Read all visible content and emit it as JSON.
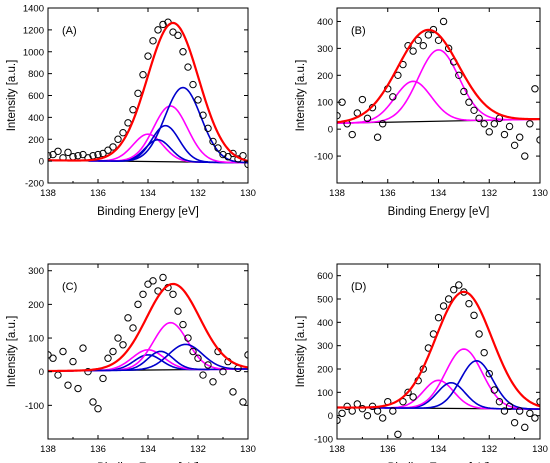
{
  "chart_data": [
    {
      "type": "line",
      "panel_label": "(A)",
      "xlabel": "Binding Energy [eV]",
      "ylabel": "Intensity [a.u.]",
      "xlim": [
        138,
        130
      ],
      "ylim": [
        -200,
        1400
      ],
      "x_ticks": [
        138,
        136,
        134,
        132,
        130
      ],
      "y_ticks": [
        -200,
        0,
        200,
        400,
        600,
        800,
        1000,
        1200,
        1400
      ],
      "grid": false,
      "baseline": [
        [
          138,
          8
        ],
        [
          130,
          -15
        ]
      ],
      "components": [
        {
          "color": "#ff00ff",
          "center": 134.0,
          "height": 250,
          "fwhm": 1.4
        },
        {
          "color": "#0000cc",
          "center": 133.6,
          "height": 200,
          "fwhm": 1.2
        },
        {
          "color": "#0000cc",
          "center": 133.3,
          "height": 330,
          "fwhm": 1.3
        },
        {
          "color": "#ff00ff",
          "center": 133.1,
          "height": 510,
          "fwhm": 1.6
        },
        {
          "color": "#0000cc",
          "center": 132.6,
          "height": 680,
          "fwhm": 1.7
        }
      ],
      "envelope": {
        "color": "#ff0000",
        "center": 133.0,
        "height": 1270,
        "fwhm": 2.4
      },
      "points": {
        "x": [
          138.0,
          137.8,
          137.6,
          137.4,
          137.2,
          137.0,
          136.8,
          136.6,
          136.4,
          136.2,
          136.0,
          135.8,
          135.6,
          135.4,
          135.2,
          135.0,
          134.8,
          134.6,
          134.4,
          134.2,
          134.0,
          133.8,
          133.6,
          133.4,
          133.2,
          133.0,
          132.8,
          132.6,
          132.4,
          132.2,
          132.0,
          131.8,
          131.6,
          131.4,
          131.2,
          131.0,
          130.8,
          130.6,
          130.4,
          130.2,
          130.0
        ],
        "y": [
          50,
          60,
          90,
          30,
          80,
          40,
          50,
          60,
          30,
          50,
          60,
          70,
          100,
          130,
          200,
          260,
          350,
          470,
          620,
          790,
          960,
          1100,
          1200,
          1250,
          1270,
          1180,
          1150,
          1000,
          860,
          700,
          560,
          420,
          300,
          180,
          120,
          60,
          40,
          70,
          20,
          50,
          -30
        ]
      }
    },
    {
      "type": "line",
      "panel_label": "(B)",
      "xlabel": "Binding Energy [eV]",
      "ylabel": "Intensity [a.u.]",
      "xlim": [
        138,
        130
      ],
      "ylim": [
        -200,
        450
      ],
      "x_ticks": [
        138,
        136,
        134,
        132,
        130
      ],
      "y_ticks": [
        -100,
        0,
        100,
        200,
        300,
        400
      ],
      "grid": false,
      "baseline": [
        [
          138,
          22
        ],
        [
          130,
          37
        ]
      ],
      "components": [
        {
          "color": "#ff00ff",
          "center": 135.0,
          "height": 150,
          "fwhm": 1.7
        },
        {
          "color": "#ff00ff",
          "center": 134.0,
          "height": 265,
          "fwhm": 1.9
        }
      ],
      "envelope": {
        "color": "#ff0000",
        "center": 134.4,
        "height": 340,
        "fwhm": 2.8
      },
      "points": {
        "x": [
          138.0,
          137.8,
          137.6,
          137.4,
          137.2,
          137.0,
          136.8,
          136.6,
          136.4,
          136.2,
          136.0,
          135.8,
          135.6,
          135.4,
          135.2,
          135.0,
          134.8,
          134.6,
          134.4,
          134.2,
          134.0,
          133.8,
          133.6,
          133.4,
          133.2,
          133.0,
          132.8,
          132.6,
          132.4,
          132.2,
          132.0,
          131.8,
          131.6,
          131.4,
          131.2,
          131.0,
          130.8,
          130.6,
          130.4,
          130.2,
          130.0
        ],
        "y": [
          50,
          100,
          20,
          -20,
          60,
          110,
          40,
          80,
          -30,
          20,
          150,
          120,
          200,
          240,
          310,
          290,
          330,
          310,
          350,
          370,
          330,
          400,
          300,
          250,
          200,
          140,
          100,
          70,
          40,
          20,
          -10,
          20,
          40,
          -20,
          10,
          -60,
          -30,
          -100,
          20,
          150,
          -40
        ]
      }
    },
    {
      "type": "line",
      "panel_label": "(C)",
      "xlabel": "Binding Energy [eV]",
      "ylabel": "Intensity [a.u.]",
      "xlim": [
        138,
        130
      ],
      "ylim": [
        -200,
        320
      ],
      "x_ticks": [
        138,
        136,
        134,
        132,
        130
      ],
      "y_ticks": [
        -100,
        0,
        100,
        200,
        300
      ],
      "grid": false,
      "baseline": [
        [
          138,
          2
        ],
        [
          130,
          8
        ]
      ],
      "components": [
        {
          "color": "#0000cc",
          "center": 134.0,
          "height": 45,
          "fwhm": 1.3
        },
        {
          "color": "#ff00ff",
          "center": 134.0,
          "height": 60,
          "fwhm": 1.5
        },
        {
          "color": "#0000cc",
          "center": 133.5,
          "height": 55,
          "fwhm": 1.2
        },
        {
          "color": "#ff00ff",
          "center": 133.1,
          "height": 140,
          "fwhm": 1.6
        },
        {
          "color": "#0000cc",
          "center": 132.5,
          "height": 75,
          "fwhm": 1.6
        }
      ],
      "envelope": {
        "color": "#ff0000",
        "center": 133.0,
        "height": 255,
        "fwhm": 2.5
      },
      "points": {
        "x": [
          138.0,
          137.8,
          137.6,
          137.4,
          137.2,
          137.0,
          136.8,
          136.6,
          136.4,
          136.2,
          136.0,
          135.8,
          135.6,
          135.4,
          135.2,
          135.0,
          134.8,
          134.6,
          134.4,
          134.2,
          134.0,
          133.8,
          133.6,
          133.4,
          133.2,
          133.0,
          132.8,
          132.6,
          132.4,
          132.2,
          132.0,
          131.8,
          131.6,
          131.4,
          131.2,
          131.0,
          130.8,
          130.6,
          130.4,
          130.2,
          130.0
        ],
        "y": [
          50,
          40,
          -10,
          60,
          -40,
          30,
          -50,
          70,
          0,
          -90,
          -110,
          -20,
          40,
          60,
          100,
          80,
          160,
          130,
          200,
          230,
          260,
          270,
          240,
          280,
          250,
          230,
          180,
          140,
          100,
          60,
          40,
          -10,
          20,
          -30,
          60,
          0,
          30,
          -60,
          10,
          -90,
          50
        ]
      }
    },
    {
      "type": "line",
      "panel_label": "(D)",
      "xlabel": "Binding Energy [eV]",
      "ylabel": "Intensity [a.u.]",
      "xlim": [
        138,
        130
      ],
      "ylim": [
        -100,
        650
      ],
      "x_ticks": [
        138,
        136,
        134,
        132,
        130
      ],
      "y_ticks": [
        -100,
        0,
        100,
        200,
        300,
        400,
        500,
        600
      ],
      "grid": false,
      "baseline": [
        [
          138,
          35
        ],
        [
          130,
          28
        ]
      ],
      "components": [
        {
          "color": "#ff00ff",
          "center": 134.0,
          "height": 120,
          "fwhm": 1.4
        },
        {
          "color": "#0000cc",
          "center": 133.5,
          "height": 110,
          "fwhm": 1.3
        },
        {
          "color": "#ff00ff",
          "center": 133.0,
          "height": 255,
          "fwhm": 1.7
        },
        {
          "color": "#0000cc",
          "center": 132.5,
          "height": 205,
          "fwhm": 1.5
        }
      ],
      "envelope": {
        "color": "#ff0000",
        "center": 133.0,
        "height": 500,
        "fwhm": 2.6
      },
      "points": {
        "x": [
          138.0,
          137.8,
          137.6,
          137.4,
          137.2,
          137.0,
          136.8,
          136.6,
          136.4,
          136.2,
          136.0,
          135.8,
          135.6,
          135.4,
          135.2,
          135.0,
          134.8,
          134.6,
          134.4,
          134.2,
          134.0,
          133.8,
          133.6,
          133.4,
          133.2,
          133.0,
          132.8,
          132.6,
          132.4,
          132.2,
          132.0,
          131.8,
          131.6,
          131.4,
          131.2,
          131.0,
          130.8,
          130.6,
          130.4,
          130.2,
          130.0
        ],
        "y": [
          -20,
          10,
          40,
          20,
          50,
          30,
          0,
          40,
          20,
          -10,
          60,
          20,
          -80,
          60,
          100,
          80,
          150,
          200,
          290,
          350,
          420,
          470,
          500,
          540,
          560,
          530,
          480,
          430,
          350,
          270,
          180,
          110,
          60,
          20,
          40,
          -30,
          20,
          -50,
          10,
          -10,
          60
        ]
      }
    }
  ]
}
